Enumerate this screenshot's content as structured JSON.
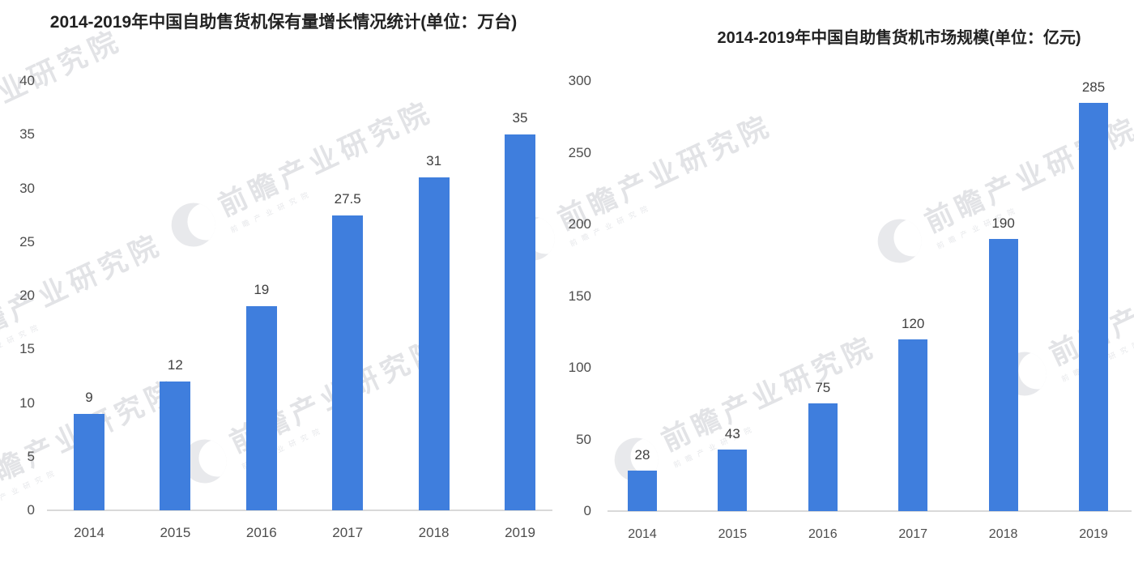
{
  "page": {
    "background": "#ffffff"
  },
  "watermark": {
    "text": "前瞻产业研究院",
    "subtext": "前瞻产业研究院",
    "color": "#c6c8cf",
    "logo_icon": "qianzhan-circle-logo"
  },
  "chart_data": [
    {
      "type": "bar",
      "title": "2014-2019年中国自助售货机保有量增长情况统计(单位：万台)",
      "categories": [
        "2014",
        "2015",
        "2016",
        "2017",
        "2018",
        "2019"
      ],
      "values": [
        9,
        12,
        19,
        27.5,
        31,
        35
      ],
      "xlabel": "",
      "ylabel": "",
      "ylim": [
        0,
        40
      ],
      "yticks": [
        0,
        5,
        10,
        15,
        20,
        25,
        30,
        35,
        40
      ],
      "grid": false,
      "legend": "none",
      "value_labels": true,
      "bar_color": "#3f7edd",
      "axis_line_color": "#d9d9d9"
    },
    {
      "type": "bar",
      "title": "2014-2019年中国自助售货机市场规模(单位：亿元)",
      "categories": [
        "2014",
        "2015",
        "2016",
        "2017",
        "2018",
        "2019"
      ],
      "values": [
        28,
        43,
        75,
        120,
        190,
        285
      ],
      "xlabel": "",
      "ylabel": "",
      "ylim": [
        0,
        300
      ],
      "yticks": [
        0,
        50,
        100,
        150,
        200,
        250,
        300
      ],
      "grid": false,
      "legend": "none",
      "value_labels": true,
      "bar_color": "#3f7edd",
      "axis_line_color": "#d9d9d9"
    }
  ]
}
